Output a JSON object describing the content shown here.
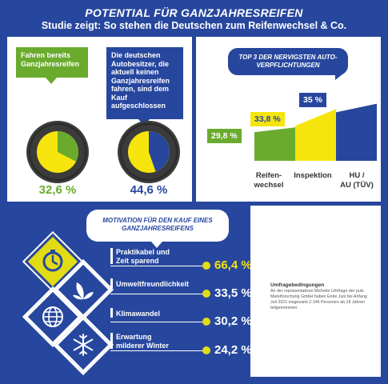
{
  "header": {
    "title": "POTENTIAL FÜR GANZJAHRESREIFEN",
    "subtitle": "Studie zeigt: So stehen die Deutschen zum Reifenwechsel & Co."
  },
  "colors": {
    "green": "#6aab2e",
    "blue": "#27479e",
    "yellow": "#f5e50d",
    "tire": "#3b3b3b"
  },
  "chart_data": [
    {
      "type": "pie",
      "label": "Fahren bereits Ganzjahresreifen",
      "value_percent": 32.6,
      "value_label": "32,6 %",
      "color": "#6aab2e"
    },
    {
      "type": "pie",
      "label": "Die deutschen Autobesitzer, die aktuell keinen Ganzjahresreifen fahren, sind dem Kauf aufgeschlossen",
      "value_percent": 44.6,
      "value_label": "44,6 %",
      "color": "#27479e"
    },
    {
      "type": "bar",
      "title": "TOP 3 DER NERVIGSTEN AUTO-VERPFLICHTUNGEN",
      "categories": [
        "Reifen-\nwechsel",
        "Inspektion",
        "HU /\nAU (TÜV)"
      ],
      "values": [
        29.8,
        33.8,
        35
      ],
      "value_labels": [
        "29,8 %",
        "33,8 %",
        "35 %"
      ],
      "colors": [
        "#6aab2e",
        "#f5e50d",
        "#27479e"
      ],
      "ylim": [
        0,
        40
      ]
    },
    {
      "type": "bar",
      "title": "MOTIVATION FÜR DEN KAUF EINES GANZJAHRESREIFENS",
      "categories": [
        "Praktikabel und Zeit sparend",
        "Umweltfreundlichkeit",
        "Klimawandel",
        "Erwartung milderer Winter"
      ],
      "values": [
        66.4,
        33.5,
        30.2,
        24.2
      ],
      "value_labels": [
        "66,4 %",
        "33,5 %",
        "30,2 %",
        "24,2 %"
      ],
      "icons": [
        "clock-icon",
        "leaves-icon",
        "globe-icon",
        "snowflake-icon"
      ]
    }
  ],
  "conditions": {
    "title": "Umfragebedingungen",
    "text": "An der repräsentativen Michelin Umfrage der puls Marktforschung GmbH haben Ende Juni bis Anfang Juli 2021 insgesamt 2.146 Personen ab 18 Jahren teilgenommen."
  }
}
